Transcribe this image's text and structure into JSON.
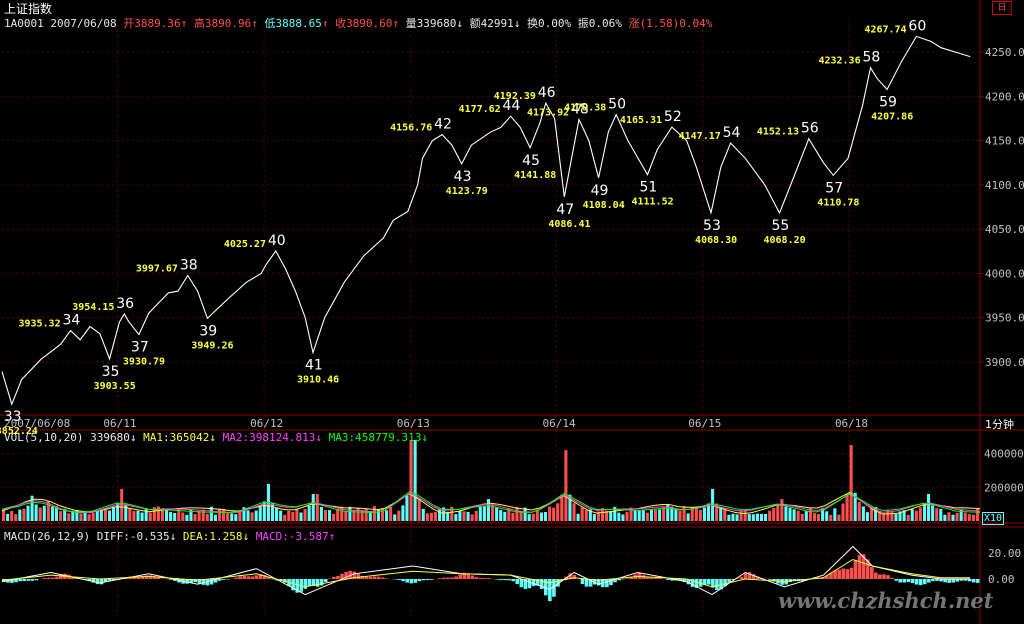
{
  "header": {
    "title": "上证指数",
    "code": "1A0001",
    "date": "2007/06/08",
    "open_label": "开",
    "open": "3889.36",
    "high_label": "高",
    "high": "3890.96",
    "low_label": "低",
    "low": "3888.65",
    "close_label": "收",
    "close": "3890.60",
    "volume_label": "量",
    "volume": "339680",
    "amount_label": "额",
    "amount": "42991",
    "turnover_label": "换",
    "turnover": "0.00%",
    "amplitude_label": "振",
    "amplitude": "0.06%",
    "change_label": "涨",
    "change": "(1.58)0.04%",
    "arrow_up": "↑",
    "arrow_down": "↓",
    "top_button": "日"
  },
  "volume_panel": {
    "label": "VOL(5,10,20)",
    "value": "339680",
    "ma1_label": "MA1:",
    "ma1": "365042",
    "ma2_label": "MA2:",
    "ma2": "398124.813",
    "ma3_label": "MA3:",
    "ma3": "458779.313",
    "arrow_down": "↓",
    "unit": "X10"
  },
  "macd_panel": {
    "label": "MACD(26,12,9)",
    "diff_label": "DIFF:",
    "diff": "-0.535",
    "dea_label": "DEA:",
    "dea": "1.258",
    "macd_label": "MACD:",
    "macd": "-3.587",
    "arrow_down": "↓",
    "arrow_up": "↑"
  },
  "period_label": "1分钟",
  "watermark": "www.chzhshch.net",
  "colors": {
    "background": "#000000",
    "price_line": "#ffffff",
    "up": "#ff5050",
    "down": "#60ffff",
    "ma_yellow": "#ffff40",
    "ma_green": "#00ff00",
    "ma_magenta": "#ff40ff",
    "grid": "#8b0000",
    "annotation_price": "#ffff40",
    "annotation_number": "#ffffff"
  },
  "chart_data": [
    {
      "type": "line",
      "panel": "price",
      "x_ticks": [
        "2007/06/08",
        "06/11",
        "06/12",
        "06/13",
        "06/14",
        "06/15",
        "06/18"
      ],
      "y_ticks": [
        "3900.0",
        "3950.0",
        "4000.0",
        "4050.0",
        "4100.0",
        "4150.0",
        "4200.0",
        "4250.0"
      ],
      "ylim": [
        3840,
        4275
      ],
      "x_range": [
        0,
        1
      ],
      "series": [
        {
          "points": [
            [
              0.0,
              3889
            ],
            [
              0.01,
              3852.24
            ],
            [
              0.02,
              3880
            ],
            [
              0.04,
              3903
            ],
            [
              0.06,
              3920
            ],
            [
              0.07,
              3935.32
            ],
            [
              0.08,
              3925
            ],
            [
              0.09,
              3940
            ],
            [
              0.1,
              3932
            ],
            [
              0.11,
              3903.55
            ],
            [
              0.12,
              3945
            ],
            [
              0.125,
              3954.15
            ],
            [
              0.13,
              3945
            ],
            [
              0.14,
              3930.79
            ],
            [
              0.15,
              3955
            ],
            [
              0.17,
              3978
            ],
            [
              0.18,
              3980
            ],
            [
              0.19,
              3997.67
            ],
            [
              0.2,
              3980
            ],
            [
              0.21,
              3949.26
            ],
            [
              0.23,
              3970
            ],
            [
              0.25,
              3990
            ],
            [
              0.265,
              4000
            ],
            [
              0.27,
              4010
            ],
            [
              0.28,
              4025.27
            ],
            [
              0.29,
              4005
            ],
            [
              0.3,
              3980
            ],
            [
              0.31,
              3950
            ],
            [
              0.318,
              3910.46
            ],
            [
              0.33,
              3950
            ],
            [
              0.35,
              3990
            ],
            [
              0.37,
              4020
            ],
            [
              0.39,
              4040
            ],
            [
              0.4,
              4060
            ],
            [
              0.415,
              4070
            ],
            [
              0.425,
              4100
            ],
            [
              0.43,
              4130
            ],
            [
              0.44,
              4150
            ],
            [
              0.45,
              4156.76
            ],
            [
              0.46,
              4145
            ],
            [
              0.47,
              4123.79
            ],
            [
              0.48,
              4145
            ],
            [
              0.5,
              4160
            ],
            [
              0.51,
              4165
            ],
            [
              0.52,
              4177.62
            ],
            [
              0.53,
              4165
            ],
            [
              0.54,
              4141.88
            ],
            [
              0.55,
              4170
            ],
            [
              0.556,
              4192.39
            ],
            [
              0.565,
              4175
            ],
            [
              0.575,
              4086.41
            ],
            [
              0.585,
              4145
            ],
            [
              0.59,
              4173.92
            ],
            [
              0.6,
              4150
            ],
            [
              0.61,
              4108.04
            ],
            [
              0.62,
              4160
            ],
            [
              0.628,
              4179.38
            ],
            [
              0.64,
              4150
            ],
            [
              0.66,
              4111.52
            ],
            [
              0.67,
              4140
            ],
            [
              0.685,
              4165.31
            ],
            [
              0.7,
              4150
            ],
            [
              0.71,
              4120
            ],
            [
              0.725,
              4068.3
            ],
            [
              0.735,
              4120
            ],
            [
              0.745,
              4147.17
            ],
            [
              0.76,
              4130
            ],
            [
              0.78,
              4100
            ],
            [
              0.795,
              4068.2
            ],
            [
              0.81,
              4110
            ],
            [
              0.825,
              4152.13
            ],
            [
              0.84,
              4125
            ],
            [
              0.85,
              4110.78
            ],
            [
              0.865,
              4130
            ],
            [
              0.88,
              4190
            ],
            [
              0.888,
              4232.36
            ],
            [
              0.895,
              4220
            ],
            [
              0.905,
              4207.86
            ],
            [
              0.92,
              4240
            ],
            [
              0.935,
              4267.74
            ],
            [
              0.95,
              4262
            ],
            [
              0.96,
              4255
            ],
            [
              0.975,
              4250
            ],
            [
              0.99,
              4245
            ]
          ]
        }
      ],
      "annotations": [
        {
          "n": "33",
          "x": 0.01,
          "y": 3852.24,
          "price": "3852.24",
          "pos": "below"
        },
        {
          "n": "34",
          "x": 0.07,
          "y": 3935.32,
          "price": "3935.32",
          "pos": "above"
        },
        {
          "n": "35",
          "x": 0.11,
          "y": 3903.55,
          "price": "3903.55",
          "pos": "below"
        },
        {
          "n": "36",
          "x": 0.125,
          "y": 3954.15,
          "price": "3954.15",
          "pos": "above"
        },
        {
          "n": "37",
          "x": 0.14,
          "y": 3930.79,
          "price": "3930.79",
          "pos": "below"
        },
        {
          "n": "38",
          "x": 0.19,
          "y": 3997.67,
          "price": "3997.67",
          "pos": "above"
        },
        {
          "n": "39",
          "x": 0.21,
          "y": 3949.26,
          "price": "3949.26",
          "pos": "below"
        },
        {
          "n": "40",
          "x": 0.28,
          "y": 4025.27,
          "price": "4025.27",
          "pos": "above"
        },
        {
          "n": "41",
          "x": 0.318,
          "y": 3910.46,
          "price": "3910.46",
          "pos": "below"
        },
        {
          "n": "42",
          "x": 0.45,
          "y": 4156.76,
          "price": "4156.76",
          "pos": "above"
        },
        {
          "n": "43",
          "x": 0.47,
          "y": 4123.79,
          "price": "4123.79",
          "pos": "below"
        },
        {
          "n": "44",
          "x": 0.52,
          "y": 4177.62,
          "price": "4177.62",
          "pos": "above"
        },
        {
          "n": "45",
          "x": 0.54,
          "y": 4141.88,
          "price": "4141.88",
          "pos": "below"
        },
        {
          "n": "46",
          "x": 0.556,
          "y": 4192.39,
          "price": "4192.39",
          "pos": "above"
        },
        {
          "n": "47",
          "x": 0.575,
          "y": 4086.41,
          "price": "4086.41",
          "pos": "below"
        },
        {
          "n": "48",
          "x": 0.59,
          "y": 4173.92,
          "price": "4173.92",
          "pos": "above"
        },
        {
          "n": "49",
          "x": 0.61,
          "y": 4108.04,
          "price": "4108.04",
          "pos": "below"
        },
        {
          "n": "50",
          "x": 0.628,
          "y": 4179.38,
          "price": "4179.38",
          "pos": "above"
        },
        {
          "n": "51",
          "x": 0.66,
          "y": 4111.52,
          "price": "4111.52",
          "pos": "below"
        },
        {
          "n": "52",
          "x": 0.685,
          "y": 4165.31,
          "price": "4165.31",
          "pos": "above"
        },
        {
          "n": "53",
          "x": 0.725,
          "y": 4068.3,
          "price": "4068.30",
          "pos": "below"
        },
        {
          "n": "54",
          "x": 0.745,
          "y": 4147.17,
          "price": "4147.17",
          "pos": "above"
        },
        {
          "n": "55",
          "x": 0.795,
          "y": 4068.2,
          "price": "4068.20",
          "pos": "below"
        },
        {
          "n": "56",
          "x": 0.825,
          "y": 4152.13,
          "price": "4152.13",
          "pos": "above"
        },
        {
          "n": "57",
          "x": 0.85,
          "y": 4110.78,
          "price": "4110.78",
          "pos": "below"
        },
        {
          "n": "58",
          "x": 0.888,
          "y": 4232.36,
          "price": "4232.36",
          "pos": "above"
        },
        {
          "n": "59",
          "x": 0.905,
          "y": 4207.86,
          "price": "4207.86",
          "pos": "below"
        },
        {
          "n": "60",
          "x": 0.935,
          "y": 4267.74,
          "price": "4267.74",
          "pos": "above"
        }
      ]
    },
    {
      "type": "bar",
      "panel": "volume",
      "y_ticks": [
        "200000",
        "400000"
      ],
      "ylim": [
        0,
        480000
      ],
      "spikes": [
        [
          0.03,
          150000
        ],
        [
          0.045,
          120000
        ],
        [
          0.12,
          190000
        ],
        [
          0.27,
          220000
        ],
        [
          0.318,
          160000
        ],
        [
          0.418,
          480000
        ],
        [
          0.497,
          130000
        ],
        [
          0.575,
          420000
        ],
        [
          0.68,
          100000
        ],
        [
          0.725,
          190000
        ],
        [
          0.795,
          130000
        ],
        [
          0.867,
          450000
        ],
        [
          0.945,
          160000
        ]
      ],
      "baseline": 60000
    },
    {
      "type": "bar",
      "panel": "macd",
      "y_ticks": [
        "0.00",
        "20.00"
      ],
      "ylim": [
        -30,
        30
      ],
      "histogram": [
        [
          0.02,
          -4
        ],
        [
          0.06,
          5
        ],
        [
          0.1,
          -5
        ],
        [
          0.14,
          5
        ],
        [
          0.2,
          -7
        ],
        [
          0.26,
          6
        ],
        [
          0.31,
          -15
        ],
        [
          0.345,
          8
        ],
        [
          0.42,
          -4
        ],
        [
          0.47,
          5
        ],
        [
          0.52,
          -3
        ],
        [
          0.56,
          -18
        ],
        [
          0.578,
          9
        ],
        [
          0.6,
          -12
        ],
        [
          0.65,
          5
        ],
        [
          0.7,
          -5
        ],
        [
          0.726,
          -12
        ],
        [
          0.76,
          6
        ],
        [
          0.8,
          -6
        ],
        [
          0.855,
          8
        ],
        [
          0.87,
          25
        ],
        [
          0.89,
          12
        ],
        [
          0.92,
          -6
        ],
        [
          0.96,
          -3
        ]
      ],
      "diff": [
        [
          0.0,
          -2
        ],
        [
          0.05,
          5
        ],
        [
          0.1,
          -3
        ],
        [
          0.15,
          4
        ],
        [
          0.2,
          -4
        ],
        [
          0.26,
          8
        ],
        [
          0.31,
          -12
        ],
        [
          0.36,
          4
        ],
        [
          0.42,
          10
        ],
        [
          0.47,
          4
        ],
        [
          0.52,
          3
        ],
        [
          0.56,
          -8
        ],
        [
          0.585,
          5
        ],
        [
          0.61,
          -4
        ],
        [
          0.65,
          5
        ],
        [
          0.7,
          -2
        ],
        [
          0.726,
          -12
        ],
        [
          0.76,
          5
        ],
        [
          0.8,
          -6
        ],
        [
          0.84,
          3
        ],
        [
          0.87,
          25
        ],
        [
          0.89,
          10
        ],
        [
          0.93,
          3
        ],
        [
          0.96,
          0
        ],
        [
          0.99,
          0
        ]
      ],
      "dea": [
        [
          0.0,
          -1
        ],
        [
          0.05,
          3
        ],
        [
          0.1,
          0
        ],
        [
          0.15,
          2
        ],
        [
          0.2,
          -1
        ],
        [
          0.26,
          4
        ],
        [
          0.31,
          -6
        ],
        [
          0.36,
          1
        ],
        [
          0.42,
          6
        ],
        [
          0.47,
          4
        ],
        [
          0.52,
          3
        ],
        [
          0.56,
          -3
        ],
        [
          0.585,
          1
        ],
        [
          0.61,
          -1
        ],
        [
          0.65,
          2
        ],
        [
          0.7,
          0
        ],
        [
          0.726,
          -6
        ],
        [
          0.76,
          0
        ],
        [
          0.8,
          -2
        ],
        [
          0.84,
          1
        ],
        [
          0.87,
          15
        ],
        [
          0.89,
          10
        ],
        [
          0.93,
          4
        ],
        [
          0.96,
          1
        ],
        [
          0.99,
          1
        ]
      ]
    }
  ]
}
